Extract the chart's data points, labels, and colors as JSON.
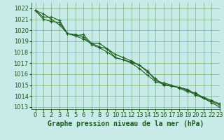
{
  "title": "Graphe pression niveau de la mer (hPa)",
  "background_color": "#c8eae8",
  "grid_color": "#66aa66",
  "line_color": "#1a5c1a",
  "xlim": [
    -0.5,
    23
  ],
  "ylim": [
    1012.8,
    1022.5
  ],
  "yticks": [
    1013,
    1014,
    1015,
    1016,
    1017,
    1018,
    1019,
    1020,
    1021,
    1022
  ],
  "xticks": [
    0,
    1,
    2,
    3,
    4,
    5,
    6,
    7,
    8,
    9,
    10,
    11,
    12,
    13,
    14,
    15,
    16,
    17,
    18,
    19,
    20,
    21,
    22,
    23
  ],
  "series": [
    [
      1021.8,
      1021.5,
      1021.0,
      1020.5,
      1019.7,
      1019.6,
      1019.4,
      1018.7,
      1018.4,
      1018.0,
      1017.5,
      1017.3,
      1017.0,
      1016.5,
      1015.9,
      1015.3,
      1015.1,
      1014.9,
      1014.8,
      1014.5,
      1014.1,
      1013.8,
      1013.5,
      1013.2
    ],
    [
      1021.8,
      1021.0,
      1020.8,
      1020.7,
      1019.7,
      1019.5,
      1019.2,
      1018.8,
      1018.5,
      1018.3,
      1017.8,
      1017.5,
      1017.2,
      1016.8,
      1016.2,
      1015.6,
      1015.0,
      1014.9,
      1014.8,
      1014.6,
      1014.2,
      1013.9,
      1013.6,
      1013.3
    ],
    [
      1021.8,
      1021.2,
      1021.2,
      1020.9,
      1019.7,
      1019.5,
      1019.6,
      1018.8,
      1018.8,
      1018.3,
      1017.5,
      1017.3,
      1017.1,
      1016.8,
      1016.3,
      1015.4,
      1015.2,
      1015.0,
      1014.7,
      1014.4,
      1014.3,
      1013.8,
      1013.4,
      1013.0
    ]
  ],
  "xlabel_fontsize": 7,
  "tick_fontsize": 6,
  "marker_size": 3,
  "linewidth": 0.8
}
